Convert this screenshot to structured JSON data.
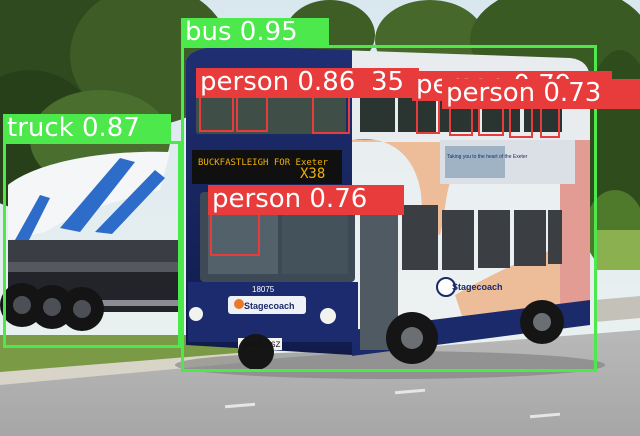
{
  "detections": [
    {
      "label": "bus 0.95",
      "color": "#4ce84c"
    },
    {
      "label": "truck 0.87",
      "color": "#4ce84c"
    },
    {
      "label": "person 0.86",
      "color": "#e83c3c"
    },
    {
      "label": "person 0.79",
      "color": "#e83c3c"
    },
    {
      "label": "person 0.73",
      "color": "#e83c3c"
    },
    {
      "label": "person 0.76",
      "color": "#e83c3c"
    },
    {
      "label": "35",
      "color": "#e83c3c"
    }
  ],
  "bus": {
    "destination": "BUCKFASTLEIGH FOR Exeter",
    "route": "X38",
    "fleet_number": "18075",
    "brand": "Stagecoach",
    "plate": "WA04 CSZ",
    "ad_text": "Taking you to the heart of the Exeter"
  }
}
